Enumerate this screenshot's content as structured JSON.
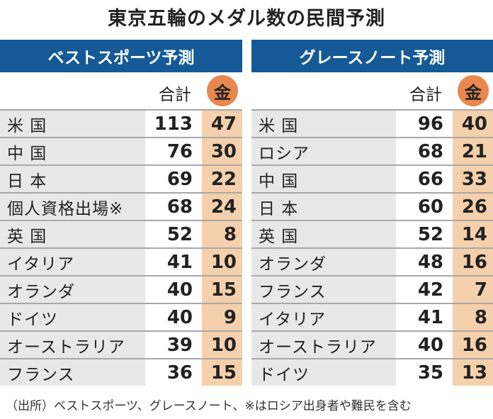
{
  "title": "東京五輪のメダル数の民間予測",
  "col_total": "合計",
  "col_gold": "金",
  "footnote": "（出所）ベストスポーツ、グレースノート、※はロシア出身者や難民を含む",
  "colors": {
    "header": "#155a96",
    "gold_cell": "#f5d0ac",
    "gold_badge": "#e8874f",
    "name_cell": "#e8e8e8"
  },
  "chart_data": {
    "type": "table",
    "title": "東京五輪のメダル数の民間予測",
    "tables": [
      {
        "name": "ベストスポーツ予測",
        "columns": [
          "合計",
          "金"
        ],
        "rows": [
          {
            "country": "米 国",
            "total": "113",
            "gold": "47"
          },
          {
            "country": "中 国",
            "total": "76",
            "gold": "30"
          },
          {
            "country": "日 本",
            "total": "69",
            "gold": "22"
          },
          {
            "country": "個人資格出場※",
            "total": "68",
            "gold": "24"
          },
          {
            "country": "英 国",
            "total": "52",
            "gold": "8"
          },
          {
            "country": "イタリア",
            "total": "41",
            "gold": "10"
          },
          {
            "country": "オランダ",
            "total": "40",
            "gold": "15"
          },
          {
            "country": "ドイツ",
            "total": "40",
            "gold": "9"
          },
          {
            "country": "オーストラリア",
            "total": "39",
            "gold": "10"
          },
          {
            "country": "フランス",
            "total": "36",
            "gold": "15"
          }
        ]
      },
      {
        "name": "グレースノート予測",
        "columns": [
          "合計",
          "金"
        ],
        "rows": [
          {
            "country": "米 国",
            "total": "96",
            "gold": "40"
          },
          {
            "country": "ロシア",
            "total": "68",
            "gold": "21"
          },
          {
            "country": "中 国",
            "total": "66",
            "gold": "33"
          },
          {
            "country": "日 本",
            "total": "60",
            "gold": "26"
          },
          {
            "country": "英 国",
            "total": "52",
            "gold": "14"
          },
          {
            "country": "オランダ",
            "total": "48",
            "gold": "16"
          },
          {
            "country": "フランス",
            "total": "42",
            "gold": "7"
          },
          {
            "country": "イタリア",
            "total": "41",
            "gold": "8"
          },
          {
            "country": "オーストラリア",
            "total": "40",
            "gold": "16"
          },
          {
            "country": "ドイツ",
            "total": "35",
            "gold": "13"
          }
        ]
      }
    ]
  }
}
